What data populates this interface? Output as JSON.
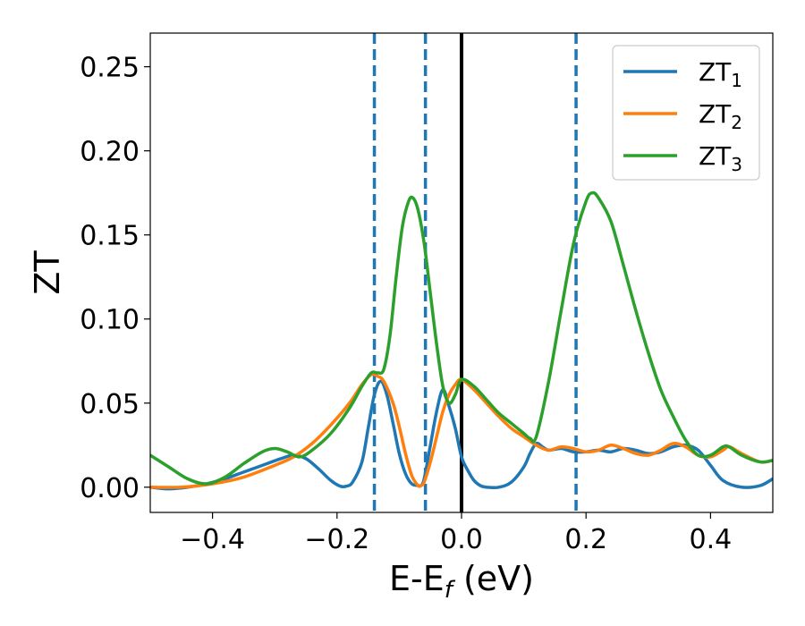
{
  "chart_data": {
    "type": "line",
    "xlabel": {
      "main": "E-E",
      "sub": "f",
      "unit": " (eV)"
    },
    "ylabel": "ZT",
    "xlim": [
      -0.5,
      0.5
    ],
    "ylim": [
      -0.015,
      0.27
    ],
    "xticks": [
      -0.4,
      -0.2,
      0.0,
      0.2,
      0.4
    ],
    "xtick_labels": [
      "−0.4",
      "−0.2",
      "0.0",
      "0.2",
      "0.4"
    ],
    "yticks": [
      0.0,
      0.05,
      0.1,
      0.15,
      0.2,
      0.25
    ],
    "ytick_labels": [
      "0.00",
      "0.05",
      "0.10",
      "0.15",
      "0.20",
      "0.25"
    ],
    "grid": false,
    "legend_position": "top-right",
    "reference_lines": [
      {
        "x": 0.0,
        "style": "solid",
        "color": "#000000"
      },
      {
        "x": -0.14,
        "style": "dashed",
        "color": "#1f77b4"
      },
      {
        "x": -0.058,
        "style": "dashed",
        "color": "#1f77b4"
      },
      {
        "x": 0.184,
        "style": "dashed",
        "color": "#1f77b4"
      }
    ],
    "series": [
      {
        "name": "ZT",
        "name_sub": "1",
        "color": "#1f77b4",
        "x": [
          -0.5,
          -0.47,
          -0.44,
          -0.41,
          -0.38,
          -0.35,
          -0.32,
          -0.29,
          -0.27,
          -0.25,
          -0.23,
          -0.21,
          -0.195,
          -0.185,
          -0.175,
          -0.16,
          -0.15,
          -0.14,
          -0.13,
          -0.12,
          -0.11,
          -0.1,
          -0.09,
          -0.08,
          -0.07,
          -0.065,
          -0.06,
          -0.05,
          -0.04,
          -0.03,
          -0.02,
          -0.01,
          0.0,
          0.01,
          0.02,
          0.03,
          0.04,
          0.06,
          0.08,
          0.1,
          0.11,
          0.12,
          0.13,
          0.14,
          0.16,
          0.18,
          0.2,
          0.22,
          0.24,
          0.26,
          0.28,
          0.3,
          0.32,
          0.34,
          0.36,
          0.38,
          0.4,
          0.42,
          0.45,
          0.48,
          0.5
        ],
        "y": [
          0.0,
          -0.001,
          0.0,
          0.002,
          0.005,
          0.009,
          0.013,
          0.017,
          0.019,
          0.017,
          0.011,
          0.004,
          0.0006,
          0.0006,
          0.003,
          0.015,
          0.035,
          0.055,
          0.063,
          0.055,
          0.038,
          0.02,
          0.008,
          0.002,
          0.001,
          0.001,
          0.005,
          0.025,
          0.045,
          0.058,
          0.048,
          0.035,
          0.018,
          0.01,
          0.004,
          0.001,
          0.0,
          0.0,
          0.003,
          0.012,
          0.02,
          0.026,
          0.024,
          0.022,
          0.023,
          0.021,
          0.021,
          0.022,
          0.021,
          0.023,
          0.022,
          0.02,
          0.021,
          0.024,
          0.025,
          0.022,
          0.013,
          0.004,
          0.0,
          0.001,
          0.005
        ]
      },
      {
        "name": "ZT",
        "name_sub": "2",
        "color": "#ff7f0e",
        "x": [
          -0.5,
          -0.45,
          -0.4,
          -0.35,
          -0.3,
          -0.27,
          -0.24,
          -0.21,
          -0.18,
          -0.16,
          -0.145,
          -0.135,
          -0.125,
          -0.11,
          -0.1,
          -0.09,
          -0.08,
          -0.07,
          -0.065,
          -0.06,
          -0.05,
          -0.04,
          -0.03,
          -0.02,
          -0.01,
          0.0,
          0.02,
          0.04,
          0.06,
          0.08,
          0.1,
          0.12,
          0.14,
          0.16,
          0.18,
          0.2,
          0.22,
          0.24,
          0.26,
          0.28,
          0.3,
          0.32,
          0.34,
          0.36,
          0.38,
          0.4,
          0.42,
          0.43,
          0.45,
          0.48,
          0.5
        ],
        "y": [
          0.0,
          0.0,
          0.002,
          0.006,
          0.013,
          0.018,
          0.026,
          0.037,
          0.05,
          0.061,
          0.067,
          0.066,
          0.063,
          0.05,
          0.036,
          0.02,
          0.007,
          0.001,
          0.001,
          0.003,
          0.015,
          0.03,
          0.045,
          0.055,
          0.061,
          0.064,
          0.058,
          0.05,
          0.042,
          0.035,
          0.03,
          0.025,
          0.022,
          0.024,
          0.023,
          0.021,
          0.022,
          0.025,
          0.023,
          0.02,
          0.019,
          0.022,
          0.026,
          0.024,
          0.019,
          0.018,
          0.022,
          0.024,
          0.02,
          0.015,
          0.016
        ]
      },
      {
        "name": "ZT",
        "name_sub": "3",
        "color": "#2ca02c",
        "x": [
          -0.5,
          -0.47,
          -0.44,
          -0.41,
          -0.38,
          -0.35,
          -0.32,
          -0.3,
          -0.28,
          -0.26,
          -0.24,
          -0.21,
          -0.18,
          -0.16,
          -0.145,
          -0.135,
          -0.125,
          -0.115,
          -0.105,
          -0.095,
          -0.085,
          -0.078,
          -0.07,
          -0.06,
          -0.05,
          -0.04,
          -0.03,
          -0.02,
          -0.01,
          0.0,
          0.02,
          0.04,
          0.06,
          0.08,
          0.1,
          0.11,
          0.12,
          0.14,
          0.16,
          0.18,
          0.2,
          0.21,
          0.22,
          0.24,
          0.26,
          0.28,
          0.3,
          0.32,
          0.34,
          0.36,
          0.38,
          0.4,
          0.42,
          0.43,
          0.45,
          0.48,
          0.5
        ],
        "y": [
          0.019,
          0.012,
          0.005,
          0.002,
          0.006,
          0.014,
          0.021,
          0.023,
          0.021,
          0.018,
          0.022,
          0.032,
          0.047,
          0.06,
          0.068,
          0.068,
          0.07,
          0.09,
          0.125,
          0.155,
          0.17,
          0.172,
          0.165,
          0.145,
          0.115,
          0.085,
          0.06,
          0.05,
          0.055,
          0.064,
          0.06,
          0.052,
          0.044,
          0.038,
          0.032,
          0.029,
          0.03,
          0.063,
          0.105,
          0.145,
          0.17,
          0.175,
          0.172,
          0.158,
          0.132,
          0.105,
          0.08,
          0.058,
          0.042,
          0.028,
          0.019,
          0.019,
          0.024,
          0.024,
          0.019,
          0.015,
          0.016
        ]
      }
    ]
  }
}
